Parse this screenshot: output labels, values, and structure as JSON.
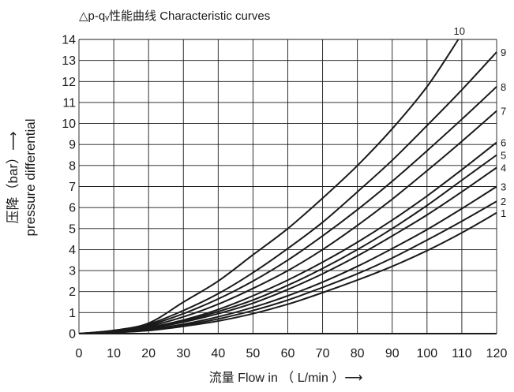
{
  "chart_data": {
    "type": "line",
    "title": "△p-qᵥ性能曲线 Characteristic curves",
    "xlabel": "流量 Flow in （ L/min ）⟶",
    "ylabel_line1": "压降（bar）⟶",
    "ylabel_line2": "pressure differential",
    "xlim": [
      0,
      120
    ],
    "ylim": [
      0,
      14
    ],
    "x_ticks": [
      0,
      10,
      20,
      30,
      40,
      50,
      60,
      70,
      80,
      90,
      100,
      110,
      120
    ],
    "y_ticks": [
      0,
      1,
      2,
      3,
      4,
      5,
      6,
      7,
      8,
      9,
      10,
      11,
      12,
      13,
      14
    ],
    "grid": true,
    "series": [
      {
        "name": "1",
        "x": [
          0,
          10,
          20,
          30,
          40,
          50,
          60,
          70,
          80,
          90,
          100,
          110,
          120
        ],
        "y": [
          0,
          0.05,
          0.15,
          0.35,
          0.6,
          0.95,
          1.4,
          1.95,
          2.55,
          3.2,
          3.95,
          4.8,
          5.75
        ]
      },
      {
        "name": "2",
        "x": [
          0,
          10,
          20,
          30,
          40,
          50,
          60,
          70,
          80,
          90,
          100,
          110,
          120
        ],
        "y": [
          0,
          0.05,
          0.2,
          0.4,
          0.7,
          1.1,
          1.6,
          2.2,
          2.85,
          3.6,
          4.45,
          5.35,
          6.3
        ]
      },
      {
        "name": "3",
        "x": [
          0,
          10,
          20,
          30,
          40,
          50,
          60,
          70,
          80,
          90,
          100,
          110,
          120
        ],
        "y": [
          0,
          0.05,
          0.2,
          0.45,
          0.8,
          1.25,
          1.8,
          2.45,
          3.2,
          4.05,
          4.95,
          5.95,
          7.0
        ]
      },
      {
        "name": "4",
        "x": [
          0,
          10,
          20,
          30,
          40,
          50,
          60,
          70,
          80,
          90,
          100,
          110,
          120
        ],
        "y": [
          0,
          0.1,
          0.25,
          0.55,
          0.95,
          1.45,
          2.1,
          2.85,
          3.7,
          4.65,
          5.65,
          6.75,
          7.9
        ]
      },
      {
        "name": "5",
        "x": [
          0,
          10,
          20,
          30,
          40,
          50,
          60,
          70,
          80,
          90,
          100,
          110,
          120
        ],
        "y": [
          0,
          0.1,
          0.3,
          0.6,
          1.05,
          1.6,
          2.3,
          3.1,
          4.0,
          5.0,
          6.1,
          7.3,
          8.5
        ]
      },
      {
        "name": "6",
        "x": [
          0,
          10,
          20,
          30,
          40,
          50,
          60,
          70,
          80,
          90,
          100,
          110,
          120
        ],
        "y": [
          0,
          0.1,
          0.3,
          0.65,
          1.15,
          1.8,
          2.55,
          3.4,
          4.35,
          5.4,
          6.55,
          7.8,
          9.1
        ]
      },
      {
        "name": "7",
        "x": [
          0,
          10,
          20,
          30,
          40,
          50,
          60,
          70,
          80,
          90,
          100,
          110,
          120
        ],
        "y": [
          0,
          0.1,
          0.35,
          0.8,
          1.4,
          2.15,
          3.0,
          4.0,
          5.15,
          6.4,
          7.75,
          9.15,
          10.6
        ]
      },
      {
        "name": "8",
        "x": [
          0,
          10,
          20,
          30,
          40,
          50,
          60,
          70,
          80,
          90,
          100,
          110,
          120
        ],
        "y": [
          0,
          0.1,
          0.4,
          0.95,
          1.65,
          2.5,
          3.5,
          4.65,
          5.9,
          7.25,
          8.7,
          10.2,
          11.75
        ]
      },
      {
        "name": "9",
        "x": [
          0,
          10,
          20,
          30,
          40,
          50,
          60,
          70,
          80,
          90,
          100,
          110,
          120
        ],
        "y": [
          0,
          0.15,
          0.45,
          1.1,
          1.9,
          2.9,
          4.05,
          5.3,
          6.75,
          8.25,
          9.9,
          11.6,
          13.4
        ]
      },
      {
        "name": "10",
        "x": [
          0,
          10,
          20,
          30,
          40,
          50,
          60,
          70,
          80,
          90,
          100,
          109
        ],
        "y": [
          0,
          0.15,
          0.5,
          1.5,
          2.5,
          3.75,
          5.0,
          6.45,
          8.0,
          9.75,
          11.75,
          14.0
        ]
      }
    ],
    "colors": {
      "curve": "#1a1a1a",
      "grid": "#1a1a1a",
      "text": "#1a1a1a",
      "background": "#ffffff"
    }
  }
}
